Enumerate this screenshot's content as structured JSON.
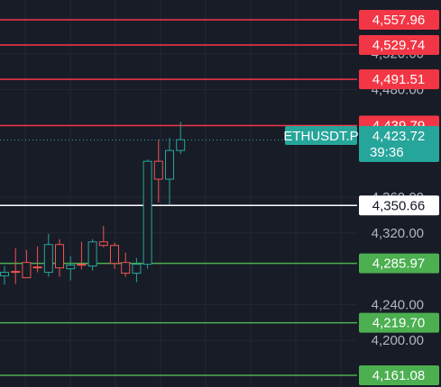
{
  "chart_data": {
    "type": "candlestick",
    "symbol": "ETHUSDT.P",
    "last_price": "4,423.72",
    "countdown": "39:36",
    "y_range": [
      4148,
      4580
    ],
    "y_ticks": [
      "4,200.00",
      "4,240.00",
      "4,320.00",
      "4,360.00",
      "4,480.00",
      "4,520.00"
    ],
    "y_tick_values": [
      4200,
      4240,
      4320,
      4360,
      4480,
      4520
    ],
    "levels": [
      {
        "label": "4,557.96",
        "value": 4557.96,
        "kind": "resistance"
      },
      {
        "label": "4,529.74",
        "value": 4529.74,
        "kind": "resistance"
      },
      {
        "label": "4,491.51",
        "value": 4491.51,
        "kind": "resistance"
      },
      {
        "label": "4,439.79",
        "value": 4439.79,
        "kind": "resistance"
      },
      {
        "label": "4,350.66",
        "value": 4350.66,
        "kind": "pivot"
      },
      {
        "label": "4,285.97",
        "value": 4285.97,
        "kind": "support"
      },
      {
        "label": "4,219.70",
        "value": 4219.7,
        "kind": "support"
      },
      {
        "label": "4,161.08",
        "value": 4161.08,
        "kind": "support"
      }
    ],
    "candles": [
      {
        "o": 4272,
        "h": 4283,
        "l": 4262,
        "c": 4276
      },
      {
        "o": 4277,
        "h": 4303,
        "l": 4263,
        "c": 4276
      },
      {
        "o": 4287,
        "h": 4301,
        "l": 4270,
        "c": 4270
      },
      {
        "o": 4282,
        "h": 4305,
        "l": 4276,
        "c": 4281
      },
      {
        "o": 4276,
        "h": 4319,
        "l": 4271,
        "c": 4307
      },
      {
        "o": 4307,
        "h": 4313,
        "l": 4271,
        "c": 4281
      },
      {
        "o": 4280,
        "h": 4294,
        "l": 4267,
        "c": 4284
      },
      {
        "o": 4285,
        "h": 4310,
        "l": 4279,
        "c": 4284
      },
      {
        "o": 4283,
        "h": 4313,
        "l": 4278,
        "c": 4310
      },
      {
        "o": 4310,
        "h": 4328,
        "l": 4304,
        "c": 4306
      },
      {
        "o": 4306,
        "h": 4309,
        "l": 4280,
        "c": 4286
      },
      {
        "o": 4287,
        "h": 4298,
        "l": 4271,
        "c": 4275
      },
      {
        "o": 4275,
        "h": 4292,
        "l": 4265,
        "c": 4285
      },
      {
        "o": 4285,
        "h": 4402,
        "l": 4280,
        "c": 4400
      },
      {
        "o": 4400,
        "h": 4424,
        "l": 4354,
        "c": 4380
      },
      {
        "o": 4380,
        "h": 4426,
        "l": 4352,
        "c": 4412
      },
      {
        "o": 4412,
        "h": 4444,
        "l": 4408,
        "c": 4424
      }
    ],
    "colors": {
      "background": "#181c27",
      "up": "#26a69a",
      "down": "#ef5350",
      "resistance": "#f23645",
      "support": "#4caf50",
      "pivot": "#ffffff",
      "axis_text": "#b2b5be"
    }
  }
}
